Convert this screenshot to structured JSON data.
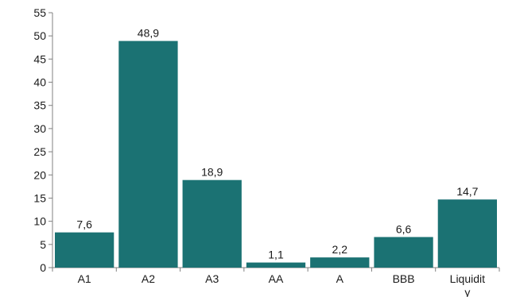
{
  "chart_data": {
    "type": "bar",
    "title": "",
    "xlabel": "",
    "ylabel": "",
    "categories": [
      "A1",
      "A2",
      "A3",
      "AA",
      "A",
      "BBB",
      "Liquidity"
    ],
    "category_labels": [
      [
        "A1"
      ],
      [
        "A2"
      ],
      [
        "A3"
      ],
      [
        "AA"
      ],
      [
        "A"
      ],
      [
        "BBB"
      ],
      [
        "Liquidit",
        "y"
      ]
    ],
    "values": [
      7.6,
      48.9,
      18.9,
      1.1,
      2.2,
      6.6,
      14.7
    ],
    "value_labels": [
      "7,6",
      "48,9",
      "18,9",
      "1,1",
      "2,2",
      "6,6",
      "14,7"
    ],
    "ylim": [
      0,
      55
    ],
    "yticks": [
      0,
      5,
      10,
      15,
      20,
      25,
      30,
      35,
      40,
      45,
      50,
      55
    ],
    "grid": false,
    "legend": "none",
    "bar_color": "#1b7273",
    "axis_color": "#808080"
  }
}
